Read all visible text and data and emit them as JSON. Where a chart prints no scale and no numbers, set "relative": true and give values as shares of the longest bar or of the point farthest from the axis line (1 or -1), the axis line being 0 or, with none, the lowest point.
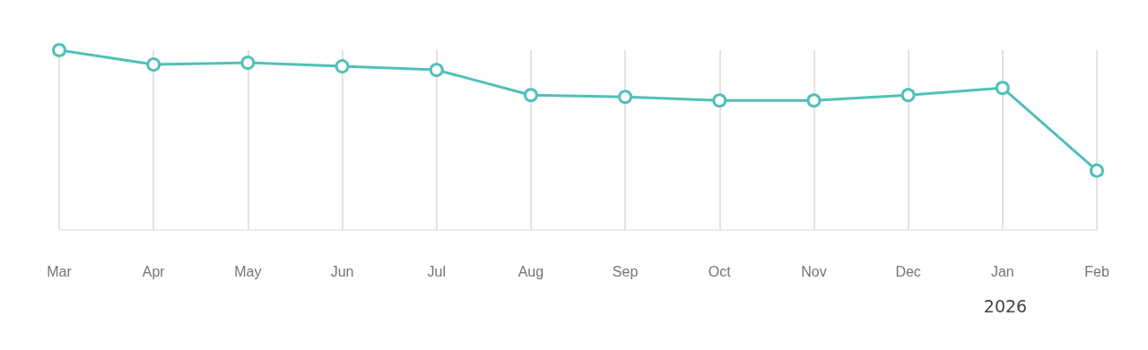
{
  "chart_data": {
    "type": "line",
    "relative": true,
    "categories": [
      "Mar",
      "Apr",
      "May",
      "Jun",
      "Jul",
      "Aug",
      "Sep",
      "Oct",
      "Nov",
      "Dec",
      "Jan",
      "Feb"
    ],
    "series": [
      {
        "color": "#52c0b8",
        "values": [
          1,
          0.92,
          0.93,
          0.91,
          0.89,
          0.75,
          0.74,
          0.72,
          0.72,
          0.75,
          0.79,
          0.33
        ]
      }
    ],
    "annotations": [
      "2026"
    ],
    "marker": "circle",
    "line_style": "solid",
    "grid": "x"
  }
}
